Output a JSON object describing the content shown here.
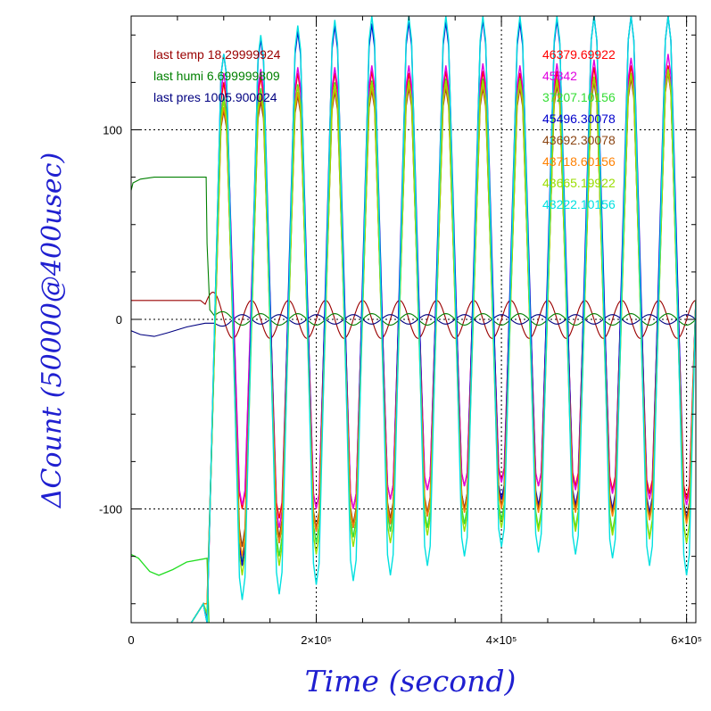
{
  "chart_data": {
    "type": "line",
    "xlabel": "Time (second)",
    "ylabel": "ΔCount (50000@400usec)",
    "xlim": [
      0,
      610000
    ],
    "ylim": [
      -160,
      160
    ],
    "grid": true,
    "x_ticks": [
      {
        "value": 0,
        "label": "0"
      },
      {
        "value": 200000,
        "label": "2×10⁵"
      },
      {
        "value": 400000,
        "label": "4×10⁵"
      },
      {
        "value": 600000,
        "label": "6×10⁵"
      }
    ],
    "y_ticks": [
      {
        "value": 100,
        "label": "100"
      },
      {
        "value": 0,
        "label": "0"
      },
      {
        "value": -100,
        "label": "-100"
      }
    ],
    "legend_left": [
      {
        "text": "last temp 18.29999924",
        "color": "#9a0000"
      },
      {
        "text": "last humi 6.699999809",
        "color": "#008000"
      },
      {
        "text": "last pres 1005.900024",
        "color": "#000080"
      }
    ],
    "legend_right": [
      {
        "text": "46379.69922",
        "color": "#ff0000"
      },
      {
        "text": "45842",
        "color": "#e000e0"
      },
      {
        "text": "37207.10156",
        "color": "#33dd33"
      },
      {
        "text": "45496.30078",
        "color": "#0000cc"
      },
      {
        "text": "43692.30078",
        "color": "#8b4513"
      },
      {
        "text": "43718.60156",
        "color": "#ff8000"
      },
      {
        "text": "43665.19922",
        "color": "#99dd00"
      },
      {
        "text": "43222.10156",
        "color": "#00e0e0"
      }
    ],
    "oscillation": {
      "start_x": 80000,
      "first_peak_x": 100000,
      "period": 40000,
      "end_x": 610000
    },
    "series": [
      {
        "name": "46379.69922",
        "color": "#ff0000",
        "peaks": [
          125,
          128,
          130,
          130,
          131,
          130,
          131,
          131,
          130,
          131,
          133,
          134,
          134
        ],
        "troughs": [
          -158,
          -100,
          -105,
          -100,
          -100,
          -95,
          -90,
          -88,
          -85,
          -88,
          -88,
          -90,
          -92,
          -95
        ]
      },
      {
        "name": "45842",
        "color": "#e000e0",
        "peaks": [
          130,
          132,
          133,
          133,
          134,
          134,
          134,
          135,
          134,
          135,
          137,
          138,
          140
        ],
        "troughs": [
          -160,
          -98,
          -110,
          -100,
          -100,
          -95,
          -90,
          -88,
          -86,
          -88,
          -90,
          -92,
          -95,
          -98
        ]
      },
      {
        "name": "37207.10156",
        "color": "#33dd33",
        "peaks": [
          118,
          122,
          124,
          125,
          126,
          126,
          127,
          127,
          127,
          127,
          128,
          130,
          132
        ],
        "troughs": [
          -155,
          -128,
          -125,
          -118,
          -115,
          -112,
          -110,
          -108,
          -106,
          -110,
          -110,
          -112,
          -115,
          -118
        ]
      },
      {
        "name": "45496.30078",
        "color": "#0000cc",
        "peaks": [
          140,
          148,
          152,
          155,
          156,
          157,
          157,
          158,
          157,
          158,
          160,
          160,
          160
        ],
        "troughs": [
          -160,
          -130,
          -118,
          -112,
          -110,
          -108,
          -104,
          -100,
          -95,
          -98,
          -98,
          -100,
          -102,
          -105
        ]
      },
      {
        "name": "43692.30078",
        "color": "#8b4513",
        "peaks": [
          110,
          115,
          118,
          120,
          121,
          122,
          122,
          122,
          122,
          123,
          125,
          127,
          130
        ],
        "troughs": [
          -150,
          -120,
          -115,
          -110,
          -108,
          -105,
          -102,
          -100,
          -98,
          -100,
          -100,
          -102,
          -104,
          -106
        ]
      },
      {
        "name": "43718.60156",
        "color": "#ff8000",
        "peaks": [
          112,
          118,
          120,
          122,
          123,
          124,
          124,
          124,
          124,
          125,
          127,
          129,
          131
        ],
        "troughs": [
          -150,
          -125,
          -118,
          -112,
          -110,
          -108,
          -104,
          -102,
          -100,
          -102,
          -102,
          -104,
          -106,
          -108
        ]
      },
      {
        "name": "43665.19922",
        "color": "#99dd00",
        "peaks": [
          115,
          120,
          123,
          124,
          125,
          126,
          126,
          126,
          126,
          127,
          128,
          130,
          132
        ],
        "troughs": [
          -155,
          -135,
          -130,
          -124,
          -120,
          -118,
          -114,
          -112,
          -110,
          -112,
          -112,
          -114,
          -116,
          -118
        ]
      },
      {
        "name": "43222.10156",
        "color": "#00e0e0",
        "peaks": [
          140,
          150,
          155,
          158,
          160,
          160,
          160,
          160,
          160,
          160,
          160,
          160,
          160
        ],
        "troughs": [
          -160,
          -148,
          -145,
          -140,
          -138,
          -135,
          -130,
          -125,
          -120,
          -123,
          -124,
          -126,
          -130,
          -135
        ]
      }
    ],
    "env_series": [
      {
        "name": "last temp",
        "color": "#9a0000",
        "pre": [
          [
            0,
            10
          ],
          [
            75000,
            10
          ],
          [
            80000,
            8
          ]
        ],
        "amplitude": 10,
        "phase_shift": 0.5
      },
      {
        "name": "last humi",
        "color": "#008000",
        "pre": [
          [
            0,
            68
          ],
          [
            2000,
            72
          ],
          [
            10000,
            74
          ],
          [
            25000,
            75
          ],
          [
            70000,
            75
          ],
          [
            81000,
            75
          ],
          [
            82000,
            40
          ],
          [
            85000,
            5
          ],
          [
            90000,
            2
          ]
        ],
        "amplitude": 3,
        "phase_shift": 0.25
      },
      {
        "name": "last pres",
        "color": "#000080",
        "pre": [
          [
            0,
            -6
          ],
          [
            10000,
            -8
          ],
          [
            25000,
            -9
          ],
          [
            40000,
            -7
          ],
          [
            60000,
            -4
          ],
          [
            80000,
            -2
          ],
          [
            90000,
            -2
          ]
        ],
        "amplitude": 2.5,
        "phase_shift": 0.75
      }
    ],
    "pre_lines": [
      {
        "color": "#22dd22",
        "points": [
          [
            0,
            -124
          ],
          [
            8000,
            -126
          ],
          [
            20000,
            -133
          ],
          [
            30000,
            -135
          ],
          [
            45000,
            -132
          ],
          [
            60000,
            -128
          ],
          [
            82000,
            -126
          ],
          [
            84000,
            -160
          ]
        ]
      }
    ]
  }
}
